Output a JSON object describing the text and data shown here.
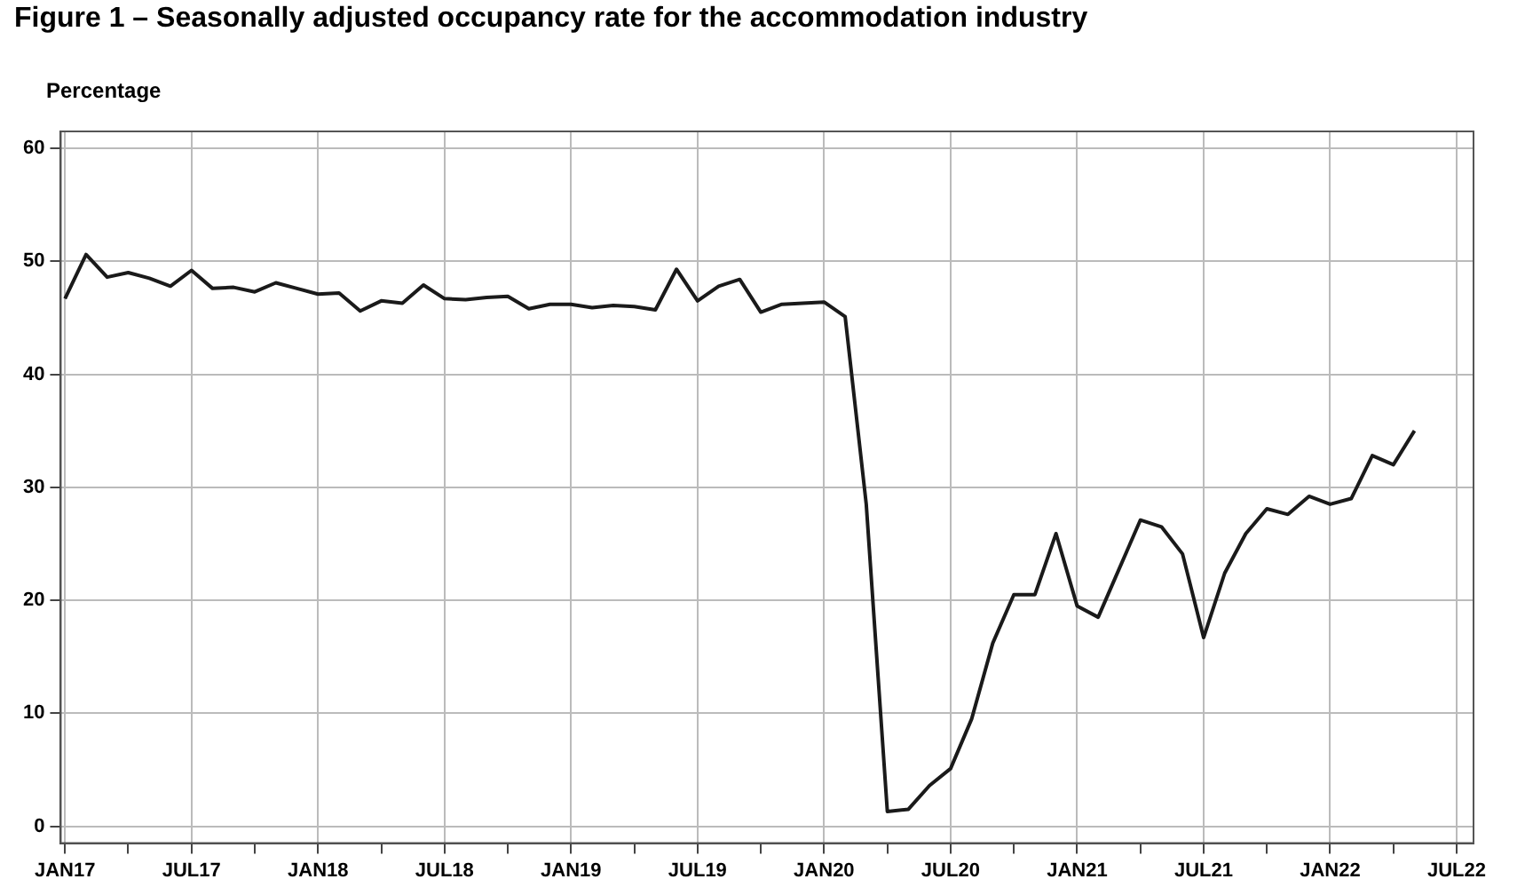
{
  "chart_data": {
    "type": "line",
    "title": "Figure 1 – Seasonally adjusted occupancy rate for the accommodation industry",
    "ylabel": "Percentage",
    "x": [
      "2017-01",
      "2017-02",
      "2017-03",
      "2017-04",
      "2017-05",
      "2017-06",
      "2017-07",
      "2017-08",
      "2017-09",
      "2017-10",
      "2017-11",
      "2017-12",
      "2018-01",
      "2018-02",
      "2018-03",
      "2018-04",
      "2018-05",
      "2018-06",
      "2018-07",
      "2018-08",
      "2018-09",
      "2018-10",
      "2018-11",
      "2018-12",
      "2019-01",
      "2019-02",
      "2019-03",
      "2019-04",
      "2019-05",
      "2019-06",
      "2019-07",
      "2019-08",
      "2019-09",
      "2019-10",
      "2019-11",
      "2019-12",
      "2020-01",
      "2020-02",
      "2020-03",
      "2020-04",
      "2020-05",
      "2020-06",
      "2020-07",
      "2020-08",
      "2020-09",
      "2020-10",
      "2020-11",
      "2020-12",
      "2021-01",
      "2021-02",
      "2021-03",
      "2021-04",
      "2021-05",
      "2021-06",
      "2021-07",
      "2021-08",
      "2021-09",
      "2021-10",
      "2021-11",
      "2021-12",
      "2022-01",
      "2022-02",
      "2022-03",
      "2022-04",
      "2022-05"
    ],
    "series": [
      {
        "color": "#1a1a1a",
        "values": [
          46.7,
          50.6,
          48.6,
          49.0,
          48.5,
          47.8,
          49.2,
          47.6,
          47.7,
          47.3,
          48.1,
          47.6,
          47.1,
          47.2,
          45.6,
          46.5,
          46.3,
          47.9,
          46.7,
          46.6,
          46.8,
          46.9,
          45.8,
          46.2,
          46.2,
          45.9,
          46.1,
          46.0,
          45.7,
          49.3,
          46.5,
          47.8,
          48.4,
          45.5,
          46.2,
          46.3,
          46.4,
          45.1,
          28.5,
          1.3,
          1.5,
          3.6,
          5.1,
          9.5,
          16.2,
          20.5,
          20.5,
          25.9,
          19.5,
          18.5,
          22.8,
          27.1,
          26.5,
          24.1,
          16.7,
          22.4,
          25.9,
          28.1,
          27.6,
          29.2,
          28.5,
          29.0,
          32.8,
          32.0,
          35.0
        ]
      }
    ],
    "xlim": [
      "2016-12-25",
      "2022-07-25"
    ],
    "xticks": [
      {
        "value": "2017-01",
        "label": "JAN17"
      },
      {
        "value": "2017-04",
        "label": null
      },
      {
        "value": "2017-07",
        "label": "JUL17"
      },
      {
        "value": "2017-10",
        "label": null
      },
      {
        "value": "2018-01",
        "label": "JAN18"
      },
      {
        "value": "2018-04",
        "label": null
      },
      {
        "value": "2018-07",
        "label": "JUL18"
      },
      {
        "value": "2018-10",
        "label": null
      },
      {
        "value": "2019-01",
        "label": "JAN19"
      },
      {
        "value": "2019-04",
        "label": null
      },
      {
        "value": "2019-07",
        "label": "JUL19"
      },
      {
        "value": "2019-10",
        "label": null
      },
      {
        "value": "2020-01",
        "label": "JAN20"
      },
      {
        "value": "2020-04",
        "label": null
      },
      {
        "value": "2020-07",
        "label": "JUL20"
      },
      {
        "value": "2020-10",
        "label": null
      },
      {
        "value": "2021-01",
        "label": "JAN21"
      },
      {
        "value": "2021-04",
        "label": null
      },
      {
        "value": "2021-07",
        "label": "JUL21"
      },
      {
        "value": "2021-10",
        "label": null
      },
      {
        "value": "2022-01",
        "label": "JAN22"
      },
      {
        "value": "2022-04",
        "label": null
      },
      {
        "value": "2022-07",
        "label": "JUL22"
      }
    ],
    "ylim": [
      -1.5,
      61.5
    ],
    "yticks": [
      0,
      10,
      20,
      30,
      40,
      50,
      60
    ],
    "grid": true,
    "legend": false,
    "marker": "none",
    "line_style": "solid"
  }
}
